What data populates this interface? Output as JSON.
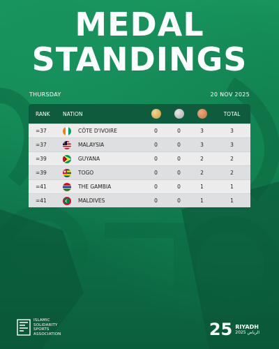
{
  "header": {
    "title_line1": "MEDAL",
    "title_line2": "STANDINGS",
    "day": "THURSDAY",
    "date": "20 NOV 2025"
  },
  "table": {
    "columns": {
      "rank": "RANK",
      "nation": "NATION",
      "gold_icon": "gold-medal-icon",
      "silver_icon": "silver-medal-icon",
      "bronze_icon": "bronze-medal-icon",
      "total": "TOTAL"
    },
    "rows": [
      {
        "rank": "=37",
        "nation": "CÔTE D'IVOIRE",
        "flag": "cote-divoire-flag-icon",
        "gold": "0",
        "silver": "0",
        "bronze": "3",
        "total": "3"
      },
      {
        "rank": "=37",
        "nation": "MALAYSIA",
        "flag": "malaysia-flag-icon",
        "gold": "0",
        "silver": "0",
        "bronze": "3",
        "total": "3"
      },
      {
        "rank": "=39",
        "nation": "GUYANA",
        "flag": "guyana-flag-icon",
        "gold": "0",
        "silver": "0",
        "bronze": "2",
        "total": "2"
      },
      {
        "rank": "=39",
        "nation": "TOGO",
        "flag": "togo-flag-icon",
        "gold": "0",
        "silver": "0",
        "bronze": "2",
        "total": "2"
      },
      {
        "rank": "=41",
        "nation": "THE GAMBIA",
        "flag": "gambia-flag-icon",
        "gold": "0",
        "silver": "0",
        "bronze": "1",
        "total": "1"
      },
      {
        "rank": "=41",
        "nation": "MALDIVES",
        "flag": "maldives-flag-icon",
        "gold": "0",
        "silver": "0",
        "bronze": "1",
        "total": "1"
      }
    ]
  },
  "footer": {
    "isa_line1": "ISLAMIC",
    "isa_line2": "SOLIDARITY",
    "isa_line3": "SPORTS",
    "isa_line4": "ASSOCIATION",
    "event_number": "25",
    "event_city": "RIYADH",
    "event_year_arabic": "الرياض 2025"
  },
  "colors": {
    "background": "#0f7a4d",
    "header_row": "#0e5b3d",
    "gold": "#d9b36a",
    "silver": "#c4c4c4",
    "bronze": "#d68f5e"
  }
}
